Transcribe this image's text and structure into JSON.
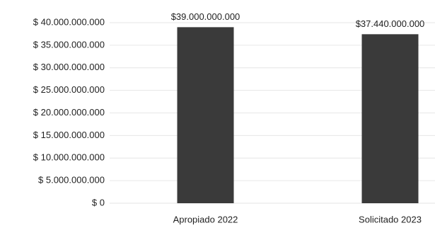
{
  "chart_data": {
    "type": "bar",
    "categories": [
      "Apropiado 2022",
      "Solicitado 2023"
    ],
    "values": [
      39000000000,
      37440000000
    ],
    "value_labels": [
      "$39.000.000.000",
      "$37.440.000.000"
    ],
    "color": "#3a3a3a",
    "ylim": [
      0,
      40000000000
    ],
    "yticks": [
      {
        "value": 0,
        "label": "$ 0"
      },
      {
        "value": 5000000000,
        "label": "$ 5.000.000.000"
      },
      {
        "value": 10000000000,
        "label": "$ 10.000.000.000"
      },
      {
        "value": 15000000000,
        "label": "$ 15.000.000.000"
      },
      {
        "value": 20000000000,
        "label": "$ 20.000.000.000"
      },
      {
        "value": 25000000000,
        "label": "$ 25.000.000.000"
      },
      {
        "value": 30000000000,
        "label": "$ 30.000.000.000"
      },
      {
        "value": 35000000000,
        "label": "$ 35.000.000.000"
      },
      {
        "value": 40000000000,
        "label": "$ 40.000.000.000"
      }
    ],
    "grid": true
  }
}
